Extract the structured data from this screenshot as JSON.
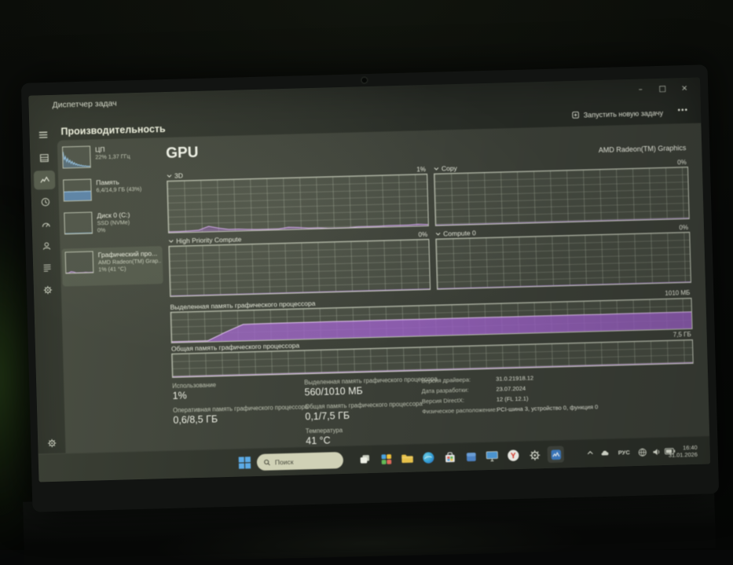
{
  "window": {
    "title": "Диспетчер задач",
    "controls": {
      "minimize": "–",
      "maximize": "□",
      "close": "×"
    }
  },
  "header": {
    "page_title": "Производительность",
    "run_new_task": "Запустить новую задачу",
    "more_menu": "•••"
  },
  "rail_items": [
    "menu",
    "processes",
    "performance",
    "app-history",
    "startup-apps",
    "users",
    "details",
    "services",
    "settings"
  ],
  "sidebar": {
    "items": [
      {
        "title": "ЦП",
        "line1": "22% 1,37 ГГц",
        "line2": ""
      },
      {
        "title": "Память",
        "line1": "6,4/14,9 ГБ (43%)",
        "line2": ""
      },
      {
        "title": "Диск 0 (C:)",
        "line1": "SSD (NVMe)",
        "line2": "0%"
      },
      {
        "title": "Графический про...",
        "line1": "AMD Radeon(TM) Grap...",
        "line2": "1% (41 °C)"
      }
    ]
  },
  "gpu": {
    "title": "GPU",
    "device": "AMD Radeon(TM) Graphics",
    "engine_graphs": [
      {
        "label": "3D",
        "value": "1%"
      },
      {
        "label": "Copy",
        "value": "0%"
      },
      {
        "label": "High Priority Compute",
        "value": "0%"
      },
      {
        "label": "Compute 0",
        "value": "0%"
      }
    ],
    "memory_graphs": [
      {
        "label": "Выделенная память графического процессора",
        "scale": "1010 МБ"
      },
      {
        "label": "Общая память графического процессора",
        "scale": "7,5 ГБ"
      }
    ],
    "stats": [
      {
        "label": "Использование",
        "value": "1%"
      },
      {
        "label": "Оперативная память графического процессора",
        "value": "0,6/8,5 ГБ"
      },
      {
        "label": "Выделенная память графического процессора",
        "value": "560/1010 МБ"
      },
      {
        "label": "Общая память графического процессора",
        "value": "0,1/7,5 ГБ"
      },
      {
        "label": "Температура",
        "value": "41 °C"
      }
    ],
    "details": [
      {
        "label": "Версия драйвера:",
        "value": "31.0.21918.12"
      },
      {
        "label": "Дата разработки:",
        "value": "23.07.2024"
      },
      {
        "label": "Версия DirectX:",
        "value": "12 (FL 12.1)"
      },
      {
        "label": "Физическое расположение:",
        "value": "PCI-шина 3, устройство 0, функция 0"
      }
    ]
  },
  "taskbar": {
    "search_placeholder": "Поиск",
    "app_icons": [
      "start",
      "task-view",
      "widgets",
      "file-explorer",
      "edge",
      "microsoft-store",
      "blue-app",
      "display-app",
      "yandex-browser",
      "settings",
      "task-manager"
    ],
    "tray": {
      "language": "РУС",
      "time": "16:40",
      "date": "31.01.2026"
    }
  },
  "colors": {
    "accent_purple": "#9a5fc4",
    "accent_purple_light": "#e2c2f3",
    "cpu_blue": "#8fc0e8",
    "selection_bg": "#4a5044",
    "search_pill": "#d0d1b6",
    "folder_yellow": "#e9c34b",
    "yandex_red": "#e03427"
  },
  "chart_data": {
    "gpu_3d": {
      "type": "area",
      "max": 100,
      "fill": "rgba(154,95,196,0.45)",
      "stroke": "#cfa5ea",
      "values": [
        1,
        1,
        2,
        3,
        10,
        6,
        3,
        3,
        2,
        1,
        1,
        1,
        4,
        3,
        1,
        1,
        0,
        0,
        0,
        1,
        1,
        1,
        2,
        2,
        2,
        3,
        2
      ]
    },
    "gpu_copy": {
      "type": "area",
      "max": 100,
      "fill": "rgba(154,95,196,0.25)",
      "stroke": "#b08cd2",
      "values": [
        0.5,
        0.5,
        0.5,
        0.5,
        0.5,
        0.5,
        0.5,
        0.5,
        0.5,
        0.5,
        0.5,
        0.5,
        0.5,
        0.5,
        0.5,
        0.5,
        0.5,
        0.5,
        0.5,
        0.5
      ]
    },
    "gpu_hpc": {
      "type": "area",
      "max": 100,
      "fill": "rgba(154,95,196,0.25)",
      "stroke": "#b08cd2",
      "values": [
        0.5,
        0.5,
        0.5,
        0.5,
        0.5,
        0.5,
        0.5,
        0.5,
        0.5,
        0.5,
        0.5,
        0.5,
        0.5,
        0.5,
        0.5,
        0.5,
        0.5,
        0.5,
        0.5,
        0.5
      ]
    },
    "gpu_compute0": {
      "type": "area",
      "max": 100,
      "fill": "rgba(154,95,196,0.25)",
      "stroke": "#b08cd2",
      "values": [
        0.5,
        0.5,
        0.5,
        0.5,
        0.5,
        0.5,
        0.5,
        0.5,
        0.5,
        0.5,
        0.5,
        0.5,
        0.5,
        0.5,
        0.5,
        0.5,
        0.5,
        0.5,
        0.5,
        0.5
      ]
    },
    "gpu_dedicated_memory": {
      "type": "area",
      "max": 1010,
      "current_mb": 560,
      "fill": "rgba(154,95,196,0.82)",
      "stroke": "#e2c2f3",
      "values": [
        25,
        25,
        25,
        300,
        548,
        556,
        558,
        557,
        559,
        560,
        559,
        560,
        561,
        560,
        559,
        560,
        560,
        561,
        560,
        559,
        560,
        561,
        560,
        560,
        559,
        560,
        561,
        560,
        560,
        560
      ]
    },
    "gpu_shared_memory": {
      "type": "area",
      "max": 7.5,
      "current_gb": 0.1,
      "fill": "rgba(154,95,196,0.4)",
      "stroke": "#cfa5ea",
      "values": [
        0.1,
        0.1,
        0.1,
        0.1,
        0.1,
        0.1,
        0.1,
        0.1,
        0.1,
        0.1,
        0.1,
        0.1,
        0.1,
        0.1,
        0.1,
        0.1,
        0.1,
        0.1,
        0.1,
        0.1
      ]
    },
    "cpu_thumb": {
      "type": "area",
      "max": 100,
      "fill": "rgba(90,140,190,0.4)",
      "stroke": "#8fc0e8",
      "values": [
        78,
        38,
        55,
        30,
        45,
        26,
        36,
        20,
        30,
        16,
        24,
        13,
        18,
        10,
        14,
        8,
        11,
        6,
        8,
        5,
        7,
        4,
        5,
        4,
        4
      ]
    },
    "memory_thumb": {
      "type": "area",
      "max": 100,
      "fill": "rgba(85,135,190,0.8)",
      "stroke": "#9cc6ea",
      "values": [
        43,
        43,
        44,
        43,
        43,
        44,
        43,
        43,
        43,
        44,
        43,
        43
      ]
    },
    "disk_thumb": {
      "type": "area",
      "max": 100,
      "fill": "rgba(85,135,190,0.2)",
      "stroke": "#7fa8c8",
      "values": [
        1,
        1,
        1,
        1,
        1,
        1,
        1,
        1,
        1,
        1
      ]
    },
    "gpu_thumb": {
      "type": "area",
      "max": 100,
      "fill": "rgba(150,95,195,0.5)",
      "stroke": "#caa0e8",
      "values": [
        0,
        0,
        6,
        4,
        0,
        0,
        0,
        0,
        1,
        0,
        0,
        0
      ]
    }
  }
}
